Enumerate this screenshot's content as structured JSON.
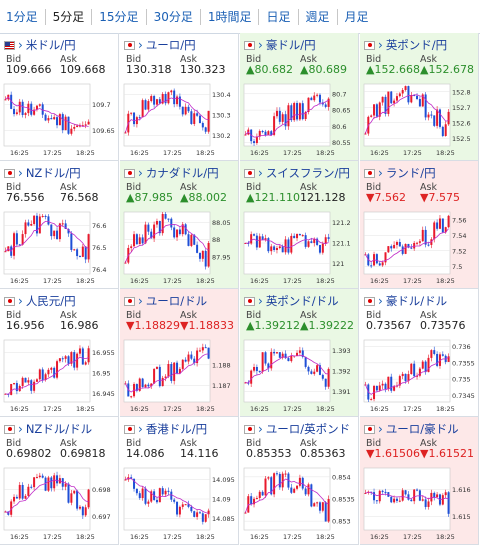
{
  "tabs": [
    "1分足",
    "5分足",
    "15分足",
    "30分足",
    "1時間足",
    "日足",
    "週足",
    "月足"
  ],
  "active_tab": 1,
  "labels": {
    "bid": "Bid",
    "ask": "Ask"
  },
  "x_ticks": [
    "16:25",
    "17:25",
    "18:25"
  ],
  "pairs": [
    {
      "name": "米ドル/円",
      "flag": "us",
      "bid": "109.666",
      "ask": "109.668",
      "trend": "flat",
      "ticks": [
        "109.7",
        "109.65"
      ],
      "range": [
        109.62,
        109.74
      ],
      "close": 109.667,
      "shape": "down"
    },
    {
      "name": "ユーロ/円",
      "flag": "eu",
      "bid": "130.318",
      "ask": "130.323",
      "trend": "flat",
      "ticks": [
        "130.4",
        "130.3",
        "130.2"
      ],
      "range": [
        130.15,
        130.45
      ],
      "close": 130.32,
      "shape": "updown"
    },
    {
      "name": "豪ドル/円",
      "flag": "au",
      "bid": "▲80.682",
      "ask": "▲80.689",
      "trend": "up",
      "ticks": [
        "80.7",
        "80.65",
        "80.6",
        "80.55"
      ],
      "range": [
        80.54,
        80.73
      ],
      "close": 80.685,
      "shape": "up"
    },
    {
      "name": "英ポンド/円",
      "flag": "gb",
      "bid": "▲152.668",
      "ask": "▲152.678",
      "trend": "up",
      "ticks": [
        "152.8",
        "152.7",
        "152.6",
        "152.5"
      ],
      "range": [
        152.45,
        152.85
      ],
      "close": 152.67,
      "shape": "updown"
    },
    {
      "name": "NZドル/円",
      "flag": "nz",
      "bid": "76.556",
      "ask": "76.568",
      "trend": "flat",
      "ticks": [
        "76.6",
        "76.5",
        "76.4"
      ],
      "range": [
        76.38,
        76.66
      ],
      "close": 76.56,
      "shape": "updown"
    },
    {
      "name": "カナダドル/円",
      "flag": "ca",
      "bid": "▲87.985",
      "ask": "▲88.002",
      "trend": "up",
      "ticks": [
        "88.05",
        "88",
        "87.95"
      ],
      "range": [
        87.9,
        88.08
      ],
      "close": 87.99,
      "shape": "updown"
    },
    {
      "name": "スイスフラン/円",
      "flag": "ch",
      "bid": "▲121.110",
      "ask": "121.128",
      "trend": "up",
      "ticks": [
        "121.2",
        "121.1",
        "121"
      ],
      "range": [
        120.95,
        121.25
      ],
      "close": 121.12,
      "shape": "flat"
    },
    {
      "name": "ランド/円",
      "flag": "za",
      "bid": "▼7.562",
      "ask": "▼7.575",
      "trend": "down",
      "ticks": [
        "7.56",
        "7.54",
        "7.52",
        "7.5"
      ],
      "range": [
        7.49,
        7.57
      ],
      "close": 7.565,
      "shape": "up"
    },
    {
      "name": "人民元/円",
      "flag": "cn",
      "bid": "16.956",
      "ask": "16.986",
      "trend": "flat",
      "ticks": [
        "16.955",
        "16.95",
        "16.945"
      ],
      "range": [
        16.943,
        16.958
      ],
      "close": 16.956,
      "shape": "up"
    },
    {
      "name": "ユーロ/ドル",
      "flag": "eu",
      "bid": "▼1.18829",
      "ask": "▼1.18833",
      "trend": "down",
      "ticks": [
        "1.188",
        "1.187"
      ],
      "range": [
        1.1862,
        1.1892
      ],
      "close": 1.1883,
      "shape": "up"
    },
    {
      "name": "英ポンド/ドル",
      "flag": "gb",
      "bid": "▲1.39212",
      "ask": "▲1.39222",
      "trend": "up",
      "ticks": [
        "1.393",
        "1.392",
        "1.391"
      ],
      "range": [
        1.3905,
        1.3935
      ],
      "close": 1.3921,
      "shape": "updown"
    },
    {
      "name": "豪ドル/ドル",
      "flag": "au",
      "bid": "0.73567",
      "ask": "0.73576",
      "trend": "flat",
      "ticks": [
        "0.736",
        "0.7355",
        "0.735",
        "0.7345"
      ],
      "range": [
        0.7343,
        0.7362
      ],
      "close": 0.7357,
      "shape": "up"
    },
    {
      "name": "NZドル/ドル",
      "flag": "nz",
      "bid": "0.69802",
      "ask": "0.69818",
      "trend": "flat",
      "ticks": [
        "0.698",
        "0.697"
      ],
      "range": [
        0.6965,
        0.6988
      ],
      "close": 0.698,
      "shape": "updown"
    },
    {
      "name": "香港ドル/円",
      "flag": "hk",
      "bid": "14.086",
      "ask": "14.116",
      "trend": "flat",
      "ticks": [
        "14.095",
        "14.09",
        "14.085"
      ],
      "range": [
        14.082,
        14.098
      ],
      "close": 14.087,
      "shape": "down"
    },
    {
      "name": "ユーロ/英ポンド",
      "flag": "eu",
      "bid": "0.85353",
      "ask": "0.85363",
      "trend": "flat",
      "ticks": [
        "0.854",
        "0.8535",
        "0.853"
      ],
      "range": [
        0.8528,
        0.8542
      ],
      "close": 0.8535,
      "shape": "updown"
    },
    {
      "name": "ユーロ/豪ドル",
      "flag": "eu",
      "bid": "▼1.61506",
      "ask": "▼1.61521",
      "trend": "down",
      "ticks": [
        "1.616",
        "1.615"
      ],
      "range": [
        1.6145,
        1.6168
      ],
      "close": 1.6151,
      "shape": "flat"
    }
  ],
  "colors": {
    "up_candle": "#e8192c",
    "down_candle": "#1f4fd6",
    "ma": "#c02ac8",
    "link": "#1a5fb4"
  }
}
